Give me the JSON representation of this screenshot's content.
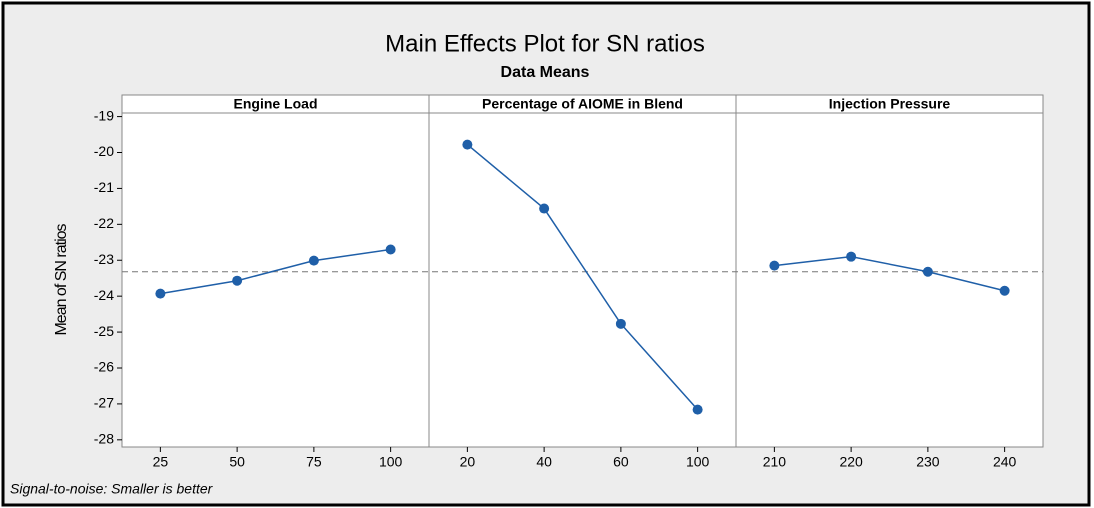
{
  "chart_data": {
    "type": "line",
    "title": "Main Effects Plot for SN ratios",
    "subtitle": "Data Means",
    "ylabel": "Mean of SN ratios",
    "footnote": "Signal-to-noise: Smaller is better",
    "ylim": [
      -28.2,
      -18.9
    ],
    "yticks": [
      -19,
      -20,
      -21,
      -22,
      -23,
      -24,
      -25,
      -26,
      -27,
      -28
    ],
    "reference_line": -23.32,
    "color": "#1f5fa8",
    "panels": [
      {
        "title": "Engine Load",
        "categories": [
          "25",
          "50",
          "75",
          "100"
        ],
        "values": [
          -23.93,
          -23.57,
          -23.01,
          -22.7
        ]
      },
      {
        "title": "Percentage of AIOME in Blend",
        "categories": [
          "20",
          "40",
          "60",
          "100"
        ],
        "values": [
          -19.78,
          -21.56,
          -24.77,
          -27.16
        ]
      },
      {
        "title": "Injection Pressure",
        "categories": [
          "210",
          "220",
          "230",
          "240"
        ],
        "values": [
          -23.15,
          -22.9,
          -23.32,
          -23.85
        ]
      }
    ]
  }
}
